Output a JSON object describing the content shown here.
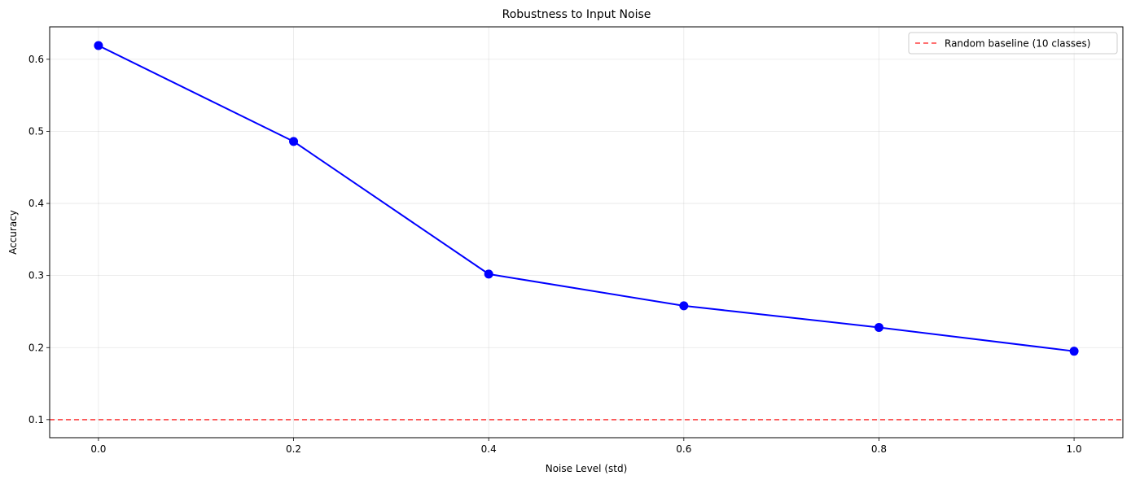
{
  "chart_data": {
    "type": "line",
    "title": "Robustness to Input Noise",
    "xlabel": "Noise Level (std)",
    "ylabel": "Accuracy",
    "xlim": [
      -0.05,
      1.05
    ],
    "ylim": [
      0.075,
      0.645
    ],
    "xticks": [
      0.0,
      0.2,
      0.4,
      0.6,
      0.8,
      1.0
    ],
    "xtick_labels": [
      "0.0",
      "0.2",
      "0.4",
      "0.6",
      "0.8",
      "1.0"
    ],
    "yticks": [
      0.1,
      0.2,
      0.3,
      0.4,
      0.5,
      0.6
    ],
    "ytick_labels": [
      "0.1",
      "0.2",
      "0.3",
      "0.4",
      "0.5",
      "0.6"
    ],
    "grid": true,
    "legend_position": "top-right",
    "series": [
      {
        "x": [
          0.0,
          0.2,
          0.4,
          0.6,
          0.8,
          1.0
        ],
        "y": [
          0.619,
          0.486,
          0.302,
          0.258,
          0.228,
          0.195
        ],
        "color": "#0000ff",
        "marker": "circle"
      }
    ],
    "reference_lines": [
      {
        "orientation": "horizontal",
        "y": 0.1,
        "label": "Random baseline (10 classes)",
        "color": "#ff0000",
        "style": "dashed"
      }
    ]
  }
}
